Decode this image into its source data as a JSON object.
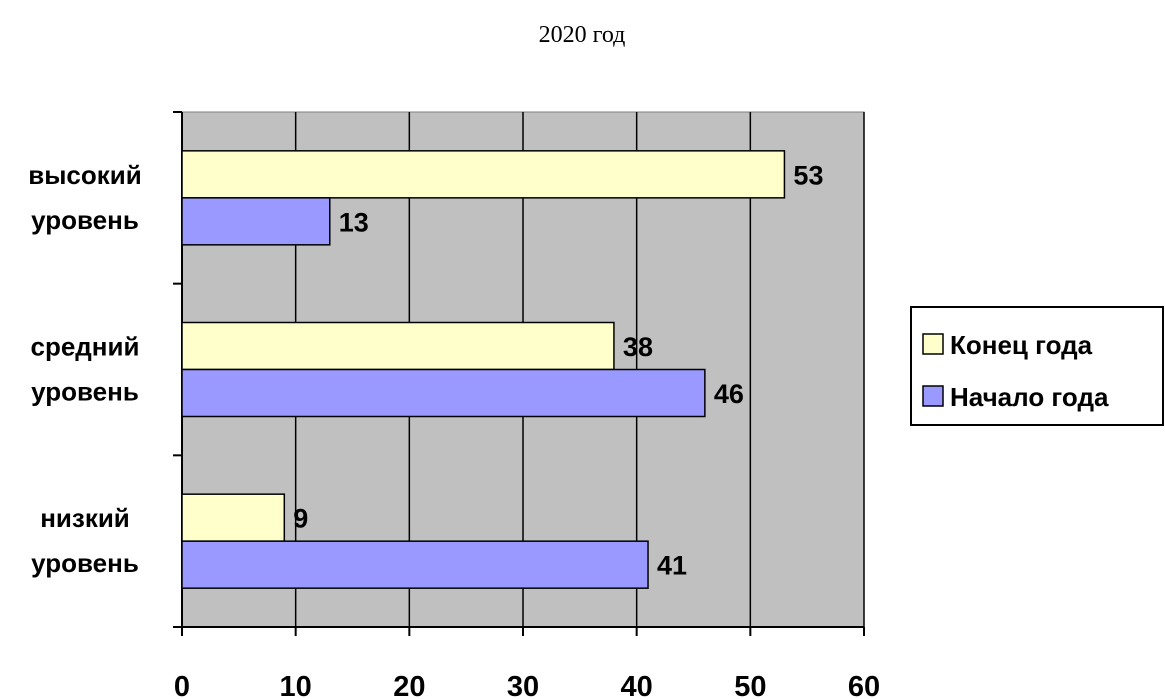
{
  "chart_data": {
    "type": "bar",
    "orientation": "horizontal",
    "title": "2020 год",
    "categories": [
      [
        "высокий",
        "уровень"
      ],
      [
        "средний",
        "уровень"
      ],
      [
        "низкий",
        "уровень"
      ]
    ],
    "series": [
      {
        "name": "Конец года",
        "values": [
          53,
          38,
          9
        ],
        "color": "#FFFFCC"
      },
      {
        "name": "Начало года",
        "values": [
          13,
          46,
          41
        ],
        "color": "#9999FF"
      }
    ],
    "xlim": [
      0,
      60
    ],
    "x_ticks": [
      "0",
      "10",
      "20",
      "30",
      "40",
      "50",
      "60"
    ],
    "plot_background": "#C0C0C0",
    "grid": true,
    "legend_position": "right",
    "data_labels": true
  }
}
